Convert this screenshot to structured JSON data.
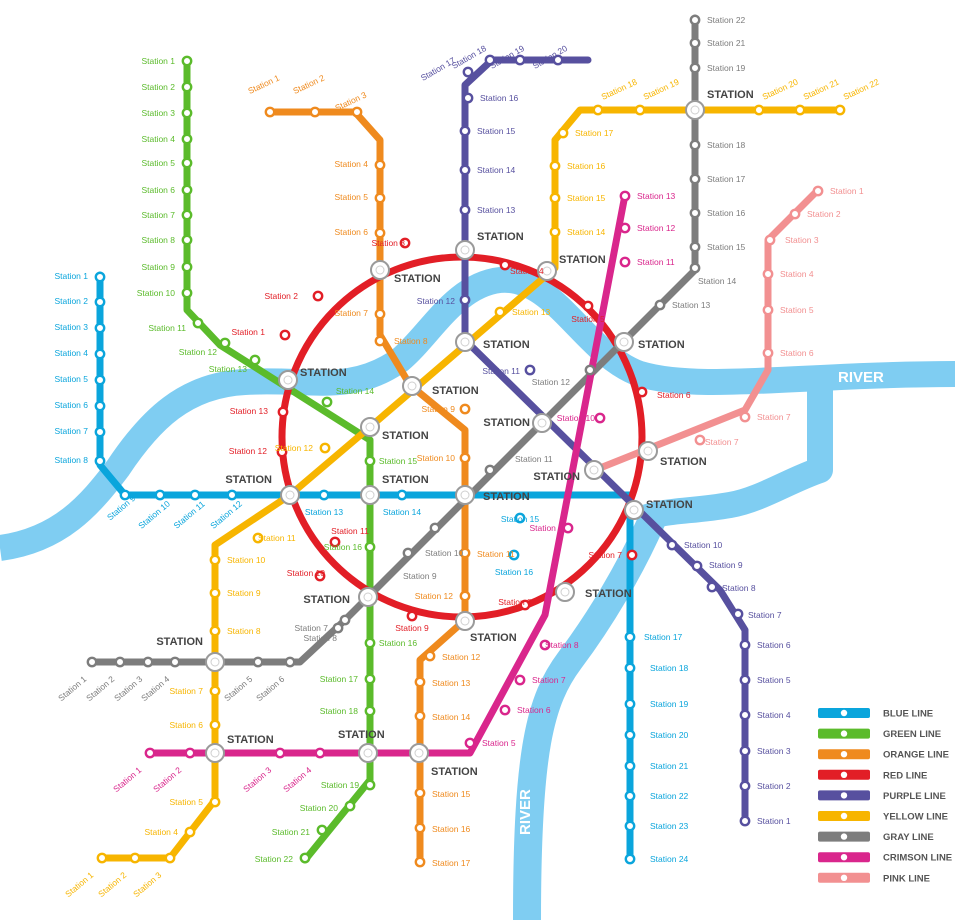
{
  "hub_label": "STATION",
  "colors": {
    "blue": "#0aa5dc",
    "green": "#5bbb2b",
    "orange": "#ef8a1e",
    "red": "#e21e26",
    "purple": "#57509f",
    "yellow": "#f7b500",
    "gray": "#7d7d7d",
    "crimson": "#d9268c",
    "pink": "#f29091",
    "river": "#7fcdf2"
  },
  "rivers": [
    {
      "label": "RIVER"
    },
    {
      "label": "RIVER"
    }
  ],
  "legend": [
    {
      "color": "blue",
      "label": "BLUE LINE"
    },
    {
      "color": "green",
      "label": "GREEN LINE"
    },
    {
      "color": "orange",
      "label": "ORANGE LINE"
    },
    {
      "color": "red",
      "label": "RED LINE"
    },
    {
      "color": "purple",
      "label": "PURPLE LINE"
    },
    {
      "color": "yellow",
      "label": "YELLOW LINE"
    },
    {
      "color": "gray",
      "label": "GRAY LINE"
    },
    {
      "color": "crimson",
      "label": "CRIMSON LINE"
    },
    {
      "color": "pink",
      "label": "PINK LINE"
    }
  ],
  "lines": {
    "blue": [
      "Station 1",
      "Station 2",
      "Station 3",
      "Station 4",
      "Station 5",
      "Station 6",
      "Station 7",
      "Station 8",
      "Station 9",
      "Station 10",
      "Station 11",
      "Station 12",
      "Station 13",
      "Station 14",
      "Station 15",
      "Station 16",
      "Station 17",
      "Station 18",
      "Station 19",
      "Station 20",
      "Station 21",
      "Station 22",
      "Station 23",
      "Station 24"
    ],
    "green": [
      "Station 1",
      "Station 2",
      "Station 3",
      "Station 4",
      "Station 5",
      "Station 6",
      "Station 7",
      "Station 8",
      "Station 9",
      "Station 10",
      "Station 11",
      "Station 12",
      "Station 13",
      "Station 14",
      "Station 15",
      "Station 16",
      "Station 16",
      "Station 17",
      "Station 18",
      "Station 19",
      "Station 20",
      "Station 21",
      "Station 22"
    ],
    "orange": [
      "Station 1",
      "Station 2",
      "Station 3",
      "Station 4",
      "Station 5",
      "Station 6",
      "Station 7",
      "Station 8",
      "Station 9",
      "Station 10",
      "Station 11",
      "Station 12",
      "Station 12",
      "Station 13",
      "Station 14",
      "Station 15",
      "Station 16",
      "Station 17"
    ],
    "red": [
      "Station 1",
      "Station 2",
      "Station 3",
      "Station 4",
      "Station 5",
      "Station 6",
      "Station 7",
      "Station 8",
      "Station 9",
      "Station 10",
      "Station 11",
      "Station 12",
      "Station 13"
    ],
    "purple": [
      "Station 1",
      "Station 2",
      "Station 3",
      "Station 4",
      "Station 5",
      "Station 6",
      "Station 7",
      "Station 8",
      "Station 9",
      "Station 10",
      "Station 11",
      "Station 12",
      "Station 13",
      "Station 14",
      "Station 15",
      "Station 16",
      "Station 17",
      "Station 18",
      "Station 19",
      "Station 20"
    ],
    "yellow": [
      "Station 1",
      "Station 2",
      "Station 3",
      "Station 4",
      "Station 5",
      "Station 6",
      "Station 7",
      "Station 8",
      "Station 9",
      "Station 10",
      "Station 11",
      "Station 12",
      "Station 13",
      "Station 14",
      "Station 15",
      "Station 16",
      "Station 17",
      "Station 18",
      "Station 19",
      "Station 20",
      "Station 21",
      "Station 22"
    ],
    "gray": [
      "Station 1",
      "Station 2",
      "Station 3",
      "Station 4",
      "Station 5",
      "Station 6",
      "Station 7",
      "Station 8",
      "Station 9",
      "Station 10",
      "Station 11",
      "Station 12",
      "Station 13",
      "Station 14",
      "Station 15",
      "Station 16",
      "Station 17",
      "Station 18",
      "Station 19",
      "Station 21",
      "Station 22"
    ],
    "crimson": [
      "Station 1",
      "Station 2",
      "Station 3",
      "Station 4",
      "Station 5",
      "Station 6",
      "Station 7",
      "Station 8",
      "Station 9",
      "Station 10",
      "Station 11",
      "Station 12",
      "Station 13"
    ],
    "pink": [
      "Station 1",
      "Station 2",
      "Station 3",
      "Station 4",
      "Station 5",
      "Station 6",
      "Station 7",
      "Station 7"
    ]
  }
}
